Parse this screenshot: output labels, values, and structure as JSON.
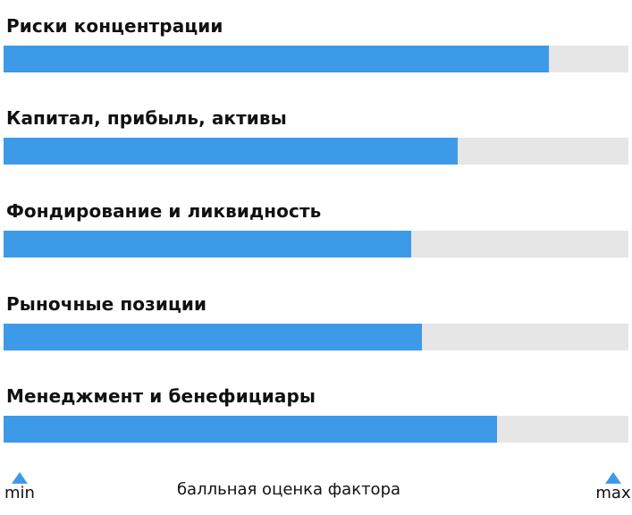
{
  "chart_data": {
    "type": "bar",
    "orientation": "horizontal",
    "categories": [
      "Риски концентрации",
      "Капитал, прибыль, активы",
      "Фондирование и ликвидность",
      "Рыночные позиции",
      "Менеджмент и бенефициары"
    ],
    "values": [
      0.873,
      0.727,
      0.652,
      0.669,
      0.789
    ],
    "xlim": [
      0,
      1
    ],
    "xlabel": "балльная оценка фактора",
    "min_label": "min",
    "max_label": "max",
    "grid": false,
    "colors": {
      "fill": "#3d9ae8",
      "track": "#e6e6e6"
    }
  }
}
